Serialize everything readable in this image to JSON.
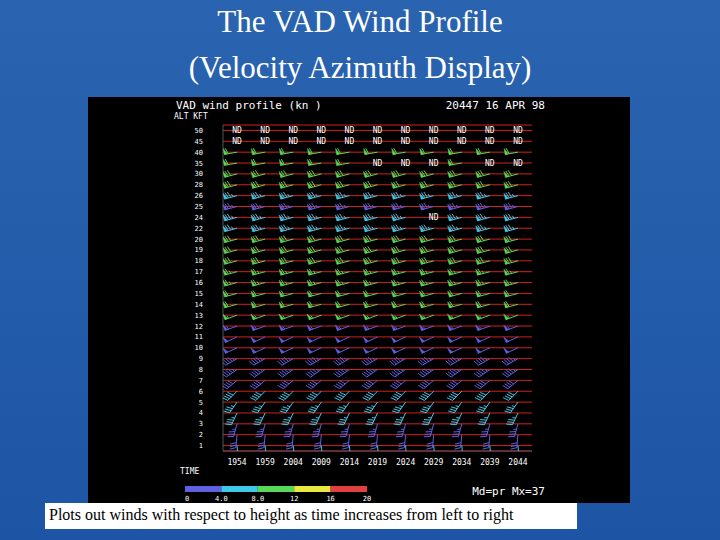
{
  "slide": {
    "title_lines": [
      "The VAD Wind Profile",
      "(Velocity Azimuth Display)"
    ],
    "caption": "Plots out winds with respect to height as time increases from left to right"
  },
  "chart_data": {
    "type": "wind_profile",
    "title": "VAD wind profile (kn )",
    "subtitle": "20447 16 APR 98",
    "x_label": "TIME",
    "y_label": "ALT KFT",
    "footer": "Md=pr Mx=37",
    "nd_label": "ND",
    "grid": true,
    "categories": [
      "1954",
      "1959",
      "2004",
      "2009",
      "2014",
      "2019",
      "2024",
      "2029",
      "2034",
      "2039",
      "2044"
    ],
    "colorbar": {
      "ticks": [
        0,
        {
          "value": 4,
          "label": "4.0"
        },
        {
          "value": 8,
          "label": "8.0"
        },
        12,
        16,
        20
      ],
      "colors": [
        "#6060e0",
        "#40c8e8",
        "#58d858",
        "#e8e840",
        "#e04040"
      ]
    },
    "rows": [
      {
        "alt": "50",
        "dir": null,
        "speed": null,
        "bin": null,
        "nd": [
          0,
          1,
          2,
          3,
          4,
          5,
          6,
          7,
          8,
          9,
          10
        ]
      },
      {
        "alt": "45",
        "dir": null,
        "speed": null,
        "bin": null,
        "nd": [
          0,
          1,
          2,
          3,
          4,
          5,
          6,
          7,
          8,
          9,
          10
        ]
      },
      {
        "alt": "40",
        "dir": 260,
        "speed": 60,
        "bin": 2,
        "nd": []
      },
      {
        "alt": "35",
        "dir": 260,
        "speed": 60,
        "bin": 2,
        "nd": [
          5,
          6,
          7,
          9,
          10
        ]
      },
      {
        "alt": "30",
        "dir": 255,
        "speed": 70,
        "bin": 2,
        "nd": []
      },
      {
        "alt": "28",
        "dir": 255,
        "speed": 70,
        "bin": 2,
        "nd": []
      },
      {
        "alt": "26",
        "dir": 255,
        "speed": 75,
        "bin": 1,
        "nd": []
      },
      {
        "alt": "25",
        "dir": 255,
        "speed": 75,
        "bin": 0,
        "nd": []
      },
      {
        "alt": "24",
        "dir": 255,
        "speed": 75,
        "bin": 1,
        "nd": [
          7
        ]
      },
      {
        "alt": "22",
        "dir": 255,
        "speed": 75,
        "bin": 1,
        "nd": []
      },
      {
        "alt": "20",
        "dir": 255,
        "speed": 70,
        "bin": 2,
        "nd": []
      },
      {
        "alt": "19",
        "dir": 255,
        "speed": 70,
        "bin": 2,
        "nd": []
      },
      {
        "alt": "18",
        "dir": 255,
        "speed": 70,
        "bin": 2,
        "nd": []
      },
      {
        "alt": "17",
        "dir": 255,
        "speed": 65,
        "bin": 2,
        "nd": []
      },
      {
        "alt": "16",
        "dir": 255,
        "speed": 65,
        "bin": 2,
        "nd": []
      },
      {
        "alt": "15",
        "dir": 255,
        "speed": 60,
        "bin": 2,
        "nd": []
      },
      {
        "alt": "14",
        "dir": 255,
        "speed": 60,
        "bin": 2,
        "nd": []
      },
      {
        "alt": "13",
        "dir": 250,
        "speed": 55,
        "bin": 2,
        "nd": []
      },
      {
        "alt": "12",
        "dir": 250,
        "speed": 55,
        "bin": 0,
        "nd": []
      },
      {
        "alt": "11",
        "dir": 245,
        "speed": 50,
        "bin": 0,
        "nd": []
      },
      {
        "alt": "10",
        "dir": 245,
        "speed": 50,
        "bin": 0,
        "nd": []
      },
      {
        "alt": "9",
        "dir": 240,
        "speed": 45,
        "bin": 0,
        "nd": []
      },
      {
        "alt": "8",
        "dir": 235,
        "speed": 45,
        "bin": 0,
        "nd": []
      },
      {
        "alt": "7",
        "dir": 230,
        "speed": 40,
        "bin": 0,
        "nd": []
      },
      {
        "alt": "6",
        "dir": 225,
        "speed": 40,
        "bin": 1,
        "nd": []
      },
      {
        "alt": "5",
        "dir": 215,
        "speed": 35,
        "bin": 1,
        "nd": []
      },
      {
        "alt": "4",
        "dir": 205,
        "speed": 35,
        "bin": 1,
        "nd": []
      },
      {
        "alt": "3",
        "dir": 195,
        "speed": 35,
        "bin": 0,
        "nd": []
      },
      {
        "alt": "2",
        "dir": 185,
        "speed": 30,
        "bin": 0,
        "nd": []
      },
      {
        "alt": "1",
        "dir": 175,
        "speed": 20,
        "bin": 1,
        "nd": []
      }
    ]
  }
}
